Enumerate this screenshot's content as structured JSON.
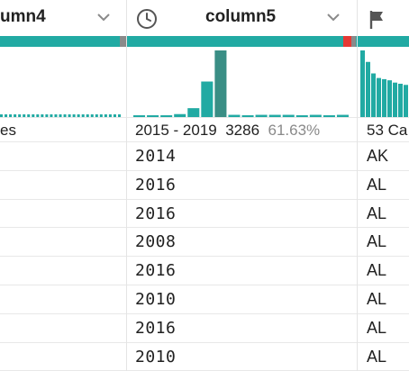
{
  "columns": {
    "col4": {
      "name": "umn4",
      "summary_text": "es",
      "hist_values": [
        1,
        1,
        1,
        1,
        1,
        1,
        1,
        1,
        1,
        1,
        1,
        1,
        1,
        1,
        1,
        1,
        1,
        1,
        1,
        1,
        1,
        1,
        1,
        1,
        1,
        1,
        1
      ],
      "quality": {
        "valid_color": "#21aaa3",
        "missing_color": "#8a8a8a"
      }
    },
    "col5": {
      "name": "column5",
      "icon": "clock-icon",
      "summary_range": "2015 - 2019",
      "summary_count": "3286",
      "summary_pct": "61.63%",
      "hist_values": [
        2,
        2,
        2,
        4,
        12,
        48,
        90,
        3,
        1,
        3,
        3,
        3,
        1,
        3,
        1,
        3
      ],
      "hist_highlight_index": 6,
      "quality": {
        "valid_color": "#21aaa3",
        "mismatched_color": "#e53935"
      },
      "rows": [
        "2014",
        "2016",
        "2016",
        "2008",
        "2016",
        "2010",
        "2016",
        "2010"
      ]
    },
    "col6": {
      "name": "",
      "icon": "flag-icon",
      "summary_text": "53 Ca",
      "hist_values": [
        58,
        48,
        38,
        34,
        33,
        32,
        30,
        29,
        28
      ],
      "rows": [
        "AK",
        "AL",
        "AL",
        "AL",
        "AL",
        "AL",
        "AL",
        "AL"
      ]
    }
  },
  "colors": {
    "bar": "#21aaa3",
    "bar_highlight": "#3a8e85",
    "text": "#212121",
    "muted": "#8a8a8a",
    "icon": "#555555"
  }
}
